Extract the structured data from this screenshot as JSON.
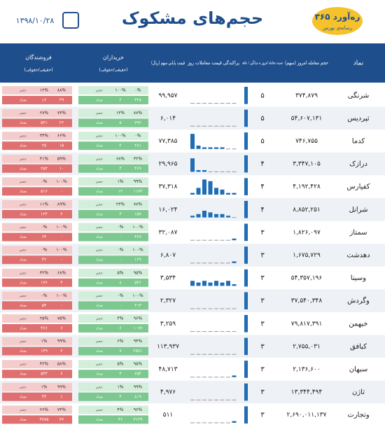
{
  "header": {
    "title": "حجم‌های مشکوک",
    "date": "۱۳۹۸/۱۰/۲۸",
    "logo": "۳۶۵ ره‌آورد",
    "logo_sub": "رسانه‌ی بورس"
  },
  "columns": {
    "symbol": "نماد",
    "volume": "حجم معامله امروز (سهم)",
    "ratio": "نسبت معامله امروز به میانگین ۱ ماهه",
    "spread": "پراکندگی قیمت معاملات روز",
    "price": "قیمت پایانی سهم (ریال)",
    "buyers": "خریداران",
    "sellers": "فروشندگان",
    "sub": "(حقیقی/حقوقی)"
  },
  "cell_labels": {
    "volume": "حجم",
    "count": "تعداد"
  },
  "rows": [
    {
      "symbol": "شرنگی",
      "volume": "۳۷۴,۸۷۹",
      "ratio": "۵",
      "price": "۹۹,۹۵۷",
      "spread": [
        0,
        0,
        0,
        0,
        0,
        0,
        0,
        0
      ],
      "buyers": [
        "۰%",
        "۱۰۰%",
        "۲",
        "۳۲۵"
      ],
      "sellers": [
        "۸۸%",
        "۱۲%",
        "۱۶",
        "۲۹"
      ]
    },
    {
      "symbol": "ثپردیس",
      "volume": "۵۴,۶۰۷,۱۳۱",
      "ratio": "۵",
      "price": "۶,۰۱۴",
      "spread": [
        0,
        0,
        0,
        0,
        0,
        0,
        0,
        0
      ],
      "buyers": [
        "۸۷%",
        "۱۳%",
        "۵",
        "۷۹۶"
      ],
      "sellers": [
        "۷۳%",
        "۲۷%",
        "۵۳۱",
        "۲۲"
      ]
    },
    {
      "symbol": "کدما",
      "volume": "۷۴۶,۷۵۵",
      "ratio": "۵",
      "price": "۷۷,۳۸۵",
      "spread": [
        9,
        2,
        1,
        1,
        1,
        1,
        0,
        0
      ],
      "buyers": [
        "۰%",
        "۱۰۰%",
        "۲",
        "۲۸۱"
      ],
      "sellers": [
        "۶۶%",
        "۳۴%",
        "۲۵",
        "۱۵"
      ]
    },
    {
      "symbol": "درازک",
      "volume": "۳,۳۴۷,۱۰۵",
      "ratio": "۴",
      "price": "۲۹,۹۶۵",
      "spread": [
        8,
        1,
        1,
        0,
        0,
        0,
        0,
        0
      ],
      "buyers": [
        "۳۲%",
        "۶۸%",
        "۴",
        "۴۶۹"
      ],
      "sellers": [
        "۵۹%",
        "۴۱%",
        "۲۵۳",
        "۱۰"
      ]
    },
    {
      "symbol": "کفپارس",
      "volume": "۴,۱۹۲,۴۲۸",
      "ratio": "۴",
      "price": "۳۷,۳۱۸",
      "spread": [
        1,
        4,
        9,
        8,
        4,
        3,
        1,
        1
      ],
      "buyers": [
        "۹۹%",
        "۱%",
        "۱۲",
        "۱۱۷۳"
      ],
      "sellers": [
        "۱۰۰%",
        "۰%",
        "۵۱۶",
        "۰"
      ]
    },
    {
      "symbol": "شرانل",
      "volume": "۸,۸۵۲,۲۵۱",
      "ratio": "۴",
      "price": "۱۶,۰۲۴",
      "spread": [
        1,
        2,
        4,
        3,
        2,
        2,
        1,
        0
      ],
      "buyers": [
        "۷۷%",
        "۲۳%",
        "۳",
        "۱۵۷"
      ],
      "sellers": [
        "۸۹%",
        "۱۱%",
        "۱۲۴",
        "۲"
      ]
    },
    {
      "symbol": "سمتاز",
      "volume": "۱,۸۲۶,۰۹۷",
      "ratio": "۳",
      "price": "۳۲,۰۸۷",
      "spread": [
        0,
        0,
        0,
        0,
        0,
        0,
        0,
        1
      ],
      "buyers": [
        "۱۰۰%",
        "۰%",
        "۰",
        "۴۶۷"
      ],
      "sellers": [
        "۱۰۰%",
        "۰%",
        "۶۴",
        "۰"
      ]
    },
    {
      "symbol": "دهدشت",
      "volume": "۱,۶۷۵,۷۲۹",
      "ratio": "۳",
      "price": "۶,۸۰۷",
      "spread": [
        0,
        0,
        0,
        0,
        0,
        0,
        0,
        1
      ],
      "buyers": [
        "۱۰۰%",
        "۰%",
        "۰",
        "۱۲۹"
      ],
      "sellers": [
        "۱۰۰%",
        "۰%",
        "۴۲",
        "۰"
      ]
    },
    {
      "symbol": "وسینا",
      "volume": "۵۴,۳۵۷,۱۹۶",
      "ratio": "۳",
      "price": "۳,۵۳۴",
      "spread": [
        3,
        2,
        3,
        2,
        3,
        2,
        3,
        1
      ],
      "buyers": [
        "۹۵%",
        "۵%",
        "۸",
        "۵۴۶"
      ],
      "sellers": [
        "۶۸%",
        "۳۲%",
        "۱۳۶",
        "۴"
      ]
    },
    {
      "symbol": "وگردش",
      "volume": "۳۷,۵۴۰,۳۴۸",
      "ratio": "۳",
      "price": "۲,۳۲۷",
      "spread": [
        0,
        0,
        0,
        0,
        0,
        0,
        0,
        0
      ],
      "buyers": [
        "۱۰۰%",
        "۰%",
        "۰",
        "۲۱۳"
      ],
      "sellers": [
        "۱۰۰%",
        "۰%",
        "۵۴",
        "۰"
      ]
    },
    {
      "symbol": "خبهمن",
      "volume": "۷۹,۸۱۷,۳۹۱",
      "ratio": "۳",
      "price": "۳,۲۵۹",
      "spread": [
        0,
        0,
        0,
        0,
        0,
        0,
        0,
        0
      ],
      "buyers": [
        "۹۶%",
        "۴%",
        "۶",
        "۱۰۷۷"
      ],
      "sellers": [
        "۷۵%",
        "۲۵%",
        "۴۶۶",
        "۶"
      ]
    },
    {
      "symbol": "کبافق",
      "volume": "۲,۷۵۵,۰۳۱",
      "ratio": "۳",
      "price": "۱۱۳,۹۳۷",
      "spread": [
        0,
        0,
        0,
        0,
        0,
        0,
        0,
        0
      ],
      "buyers": [
        "۹۴%",
        "۶%",
        "۷",
        "۲۵۷۱"
      ],
      "sellers": [
        "۹۹%",
        "۱%",
        "۱۴۹",
        "۲"
      ]
    },
    {
      "symbol": "سبهان",
      "volume": "۲,۱۳۶,۶۰۰",
      "ratio": "۳",
      "price": "۴۸,۷۱۳",
      "spread": [
        0,
        0,
        0,
        0,
        0,
        0,
        0,
        1
      ],
      "buyers": [
        "۹۵%",
        "۵%",
        "۳",
        "۶۵۴"
      ],
      "sellers": [
        "۵۸%",
        "۴۲%",
        "۵۴۴",
        "۶"
      ]
    },
    {
      "symbol": "ثاژن",
      "volume": "۱۳,۳۴۴,۴۹۴",
      "ratio": "۳",
      "price": "۴,۹۷۶",
      "spread": [
        0,
        0,
        0,
        0,
        0,
        0,
        0,
        0
      ],
      "buyers": [
        "۹۹%",
        "۱%",
        "۴",
        "۸۱۹"
      ],
      "sellers": [
        "۹۹%",
        "۱%",
        "۴۴",
        "۱"
      ]
    },
    {
      "symbol": "وتجارت",
      "volume": "۲,۶۹۰,۰۱۱,۱۳۷",
      "ratio": "۳",
      "price": "۵۱۱",
      "spread": [
        0,
        0,
        0,
        0,
        0,
        0,
        0,
        1
      ],
      "buyers": [
        "۹۶%",
        "۴%",
        "۴۶",
        "۳۱۳۹"
      ],
      "sellers": [
        "۷۴%",
        "۲۶%",
        "۴۷۷۵",
        "۳۶"
      ]
    }
  ]
}
